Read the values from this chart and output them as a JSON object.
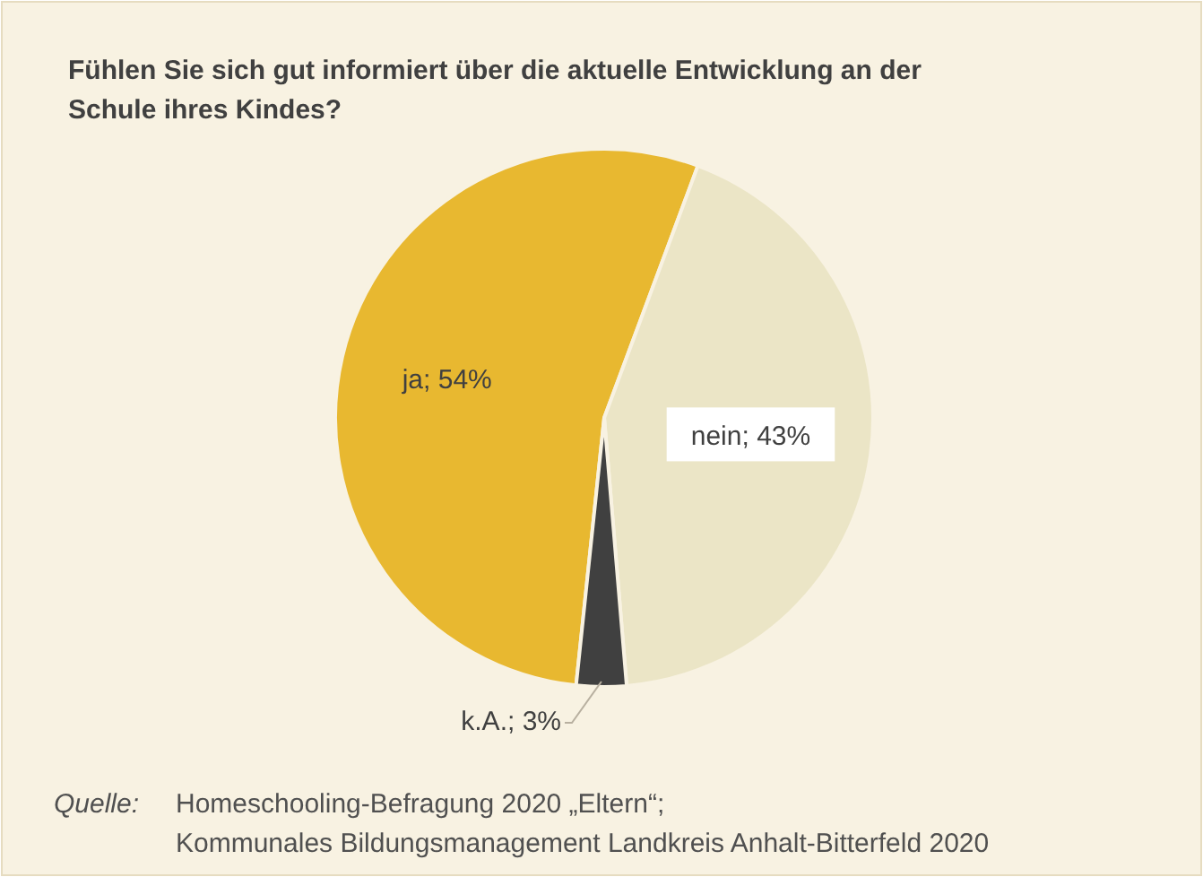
{
  "chart_data": {
    "type": "pie",
    "title": "Fühlen Sie sich gut informiert über die aktuelle Entwicklung an der Schule ihres Kindes?",
    "categories": [
      "ja",
      "nein",
      "k.A."
    ],
    "values": [
      54,
      43,
      3
    ],
    "colors": [
      "#e8b830",
      "#ebe5c6",
      "#404040"
    ],
    "value_labels": [
      "; 54%",
      "; 43%",
      "; 3%"
    ],
    "annotations": [
      "Quelle:",
      "Homeschooling-Befragung 2020 „Eltern“;",
      "Kommunales Bildungsmanagement Landkreis Anhalt-Bitterfeld 2020"
    ]
  }
}
